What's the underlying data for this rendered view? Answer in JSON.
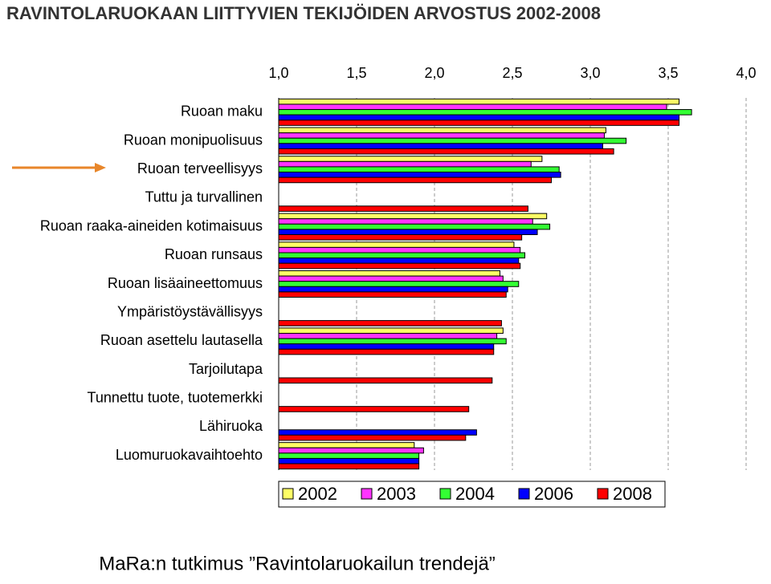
{
  "chart_data": {
    "type": "bar",
    "orientation": "horizontal",
    "title": "RAVINTOLARUOKAAN LIITTYVIEN TEKIJÖIDEN ARVOSTUS 2002-2008",
    "footer": "MaRa:n tutkimus ”Ravintolaruokailun trendejä”",
    "categories": [
      "Ruoan maku",
      "Ruoan monipuolisuus",
      "Ruoan terveellisyys",
      "Tuttu ja turvallinen",
      "Ruoan raaka-aineiden kotimaisuus",
      "Ruoan runsaus",
      "Ruoan lisäaineettomuus",
      "Ympäristöystävällisyys",
      "Ruoan asettelu lautasella",
      "Tarjoilutapa",
      "Tunnettu tuote, tuotemerkki",
      "Lähiruoka",
      "Luomuruokavaihtoehto"
    ],
    "series": [
      {
        "name": "2002",
        "color": "#ffff66",
        "values": [
          3.57,
          3.1,
          2.69,
          null,
          2.72,
          2.51,
          2.42,
          null,
          2.44,
          null,
          null,
          null,
          1.87
        ]
      },
      {
        "name": "2003",
        "color": "#ff33ff",
        "values": [
          3.49,
          3.09,
          2.62,
          null,
          2.63,
          2.55,
          2.44,
          null,
          2.4,
          null,
          null,
          null,
          1.93
        ]
      },
      {
        "name": "2004",
        "color": "#33ff33",
        "values": [
          3.65,
          3.23,
          2.8,
          null,
          2.74,
          2.58,
          2.54,
          null,
          2.46,
          null,
          null,
          null,
          1.9
        ]
      },
      {
        "name": "2006",
        "color": "#0000ff",
        "values": [
          3.57,
          3.08,
          2.81,
          null,
          2.66,
          2.54,
          2.47,
          null,
          2.38,
          null,
          null,
          2.27,
          1.9
        ]
      },
      {
        "name": "2008",
        "color": "#ff0000",
        "values": [
          3.57,
          3.15,
          2.75,
          2.6,
          2.56,
          2.55,
          2.46,
          2.43,
          2.38,
          2.37,
          2.22,
          2.2,
          1.9
        ]
      }
    ],
    "xlim": [
      1,
      4
    ],
    "xticks": [
      {
        "value": 1,
        "label": "1,0"
      },
      {
        "value": 1.5,
        "label": "1,5"
      },
      {
        "value": 2,
        "label": "2,0"
      },
      {
        "value": 2.5,
        "label": "2,5"
      },
      {
        "value": 3,
        "label": "3,0"
      },
      {
        "value": 3.5,
        "label": "3,5"
      },
      {
        "value": 4,
        "label": "4,0"
      }
    ],
    "grid": true,
    "legend": "bottom"
  }
}
